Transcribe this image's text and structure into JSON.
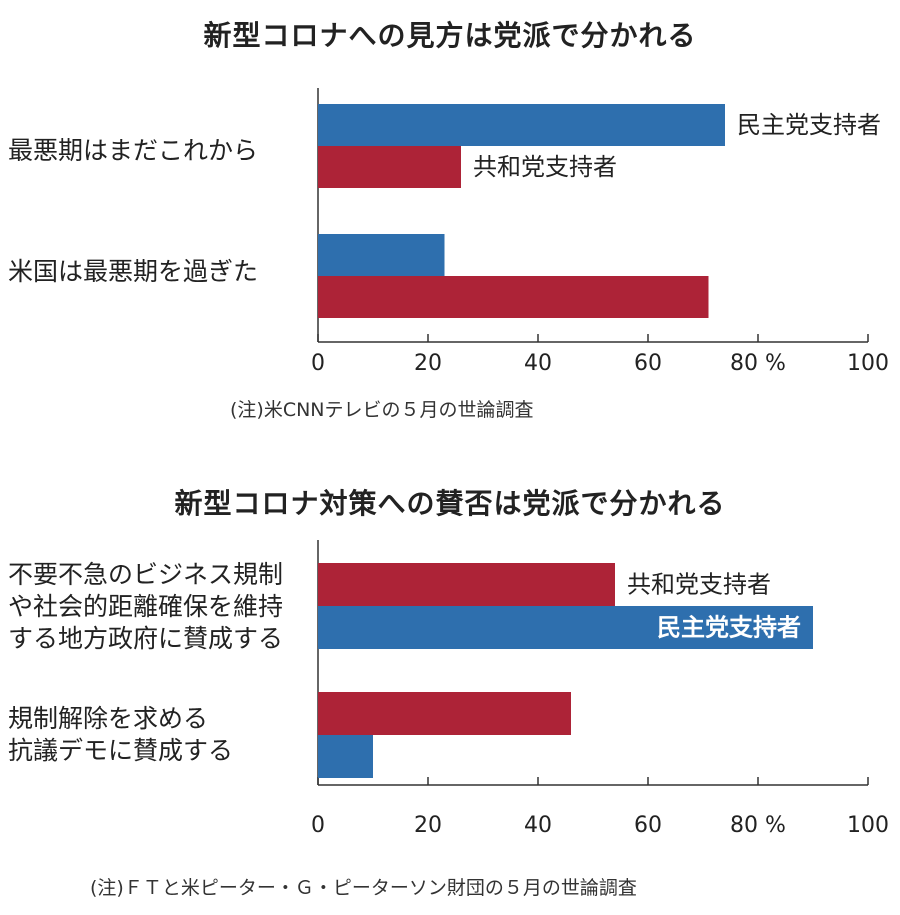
{
  "colors": {
    "democrat": "#2e6fae",
    "republican": "#ad2337",
    "axis": "#333333"
  },
  "chart_data": [
    {
      "type": "bar",
      "orientation": "horizontal",
      "title": "新型コロナへの見方は党派で分かれる",
      "categories": [
        "最悪期はまだこれから",
        "米国は最悪期を過ぎた"
      ],
      "series": [
        {
          "name": "民主党支持者",
          "values": [
            74,
            23
          ]
        },
        {
          "name": "共和党支持者",
          "values": [
            26,
            71
          ]
        }
      ],
      "xlim": [
        0,
        100
      ],
      "xticks": [
        "0",
        "20",
        "40",
        "60",
        "80 %",
        "100"
      ],
      "note": "(注)米CNNテレビの５月の世論調査"
    },
    {
      "type": "bar",
      "orientation": "horizontal",
      "title": "新型コロナ対策への賛否は党派で分かれる",
      "categories": [
        "不要不急のビジネス規制\nや社会的距離確保を維持\nする地方政府に賛成する",
        "規制解除を求める\n抗議デモに賛成する"
      ],
      "series": [
        {
          "name": "共和党支持者",
          "values": [
            54,
            46
          ]
        },
        {
          "name": "民主党支持者",
          "values": [
            90,
            10
          ]
        }
      ],
      "xlim": [
        0,
        100
      ],
      "xticks": [
        "0",
        "20",
        "40",
        "60",
        "80 %",
        "100"
      ],
      "note": "(注)ＦＴと米ピーター・Ｇ・ピーターソン財団の５月の世論調査"
    }
  ]
}
